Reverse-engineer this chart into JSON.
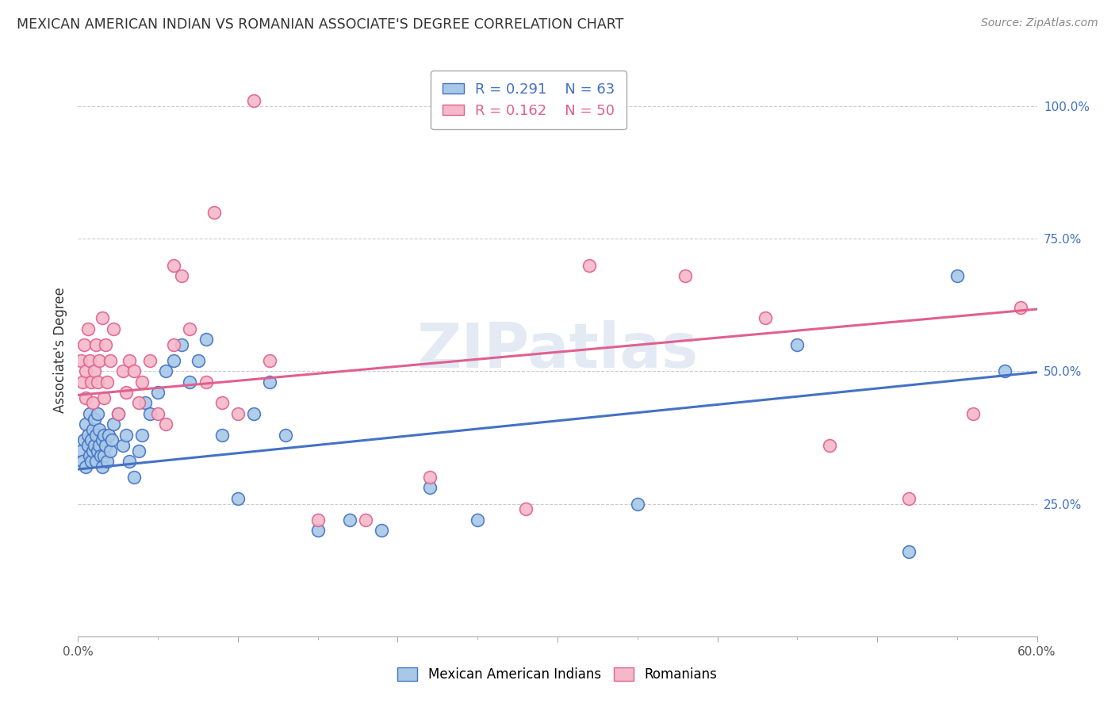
{
  "title": "MEXICAN AMERICAN INDIAN VS ROMANIAN ASSOCIATE'S DEGREE CORRELATION CHART",
  "source": "Source: ZipAtlas.com",
  "ylabel": "Associate's Degree",
  "ytick_labels": [
    "25.0%",
    "50.0%",
    "75.0%",
    "100.0%"
  ],
  "ytick_values": [
    0.25,
    0.5,
    0.75,
    1.0
  ],
  "xlim": [
    0.0,
    0.6
  ],
  "ylim": [
    0.0,
    1.08
  ],
  "legend_blue_r": "R = 0.291",
  "legend_blue_n": "N = 63",
  "legend_pink_r": "R = 0.162",
  "legend_pink_n": "N = 50",
  "legend_label_blue": "Mexican American Indians",
  "legend_label_pink": "Romanians",
  "blue_fill": "#a8c8e8",
  "pink_fill": "#f4b8c8",
  "blue_edge": "#4472c4",
  "pink_edge": "#e06090",
  "blue_line": "#4472c4",
  "pink_line": "#e06090",
  "watermark": "ZIPatlas",
  "blue_x": [
    0.002,
    0.003,
    0.004,
    0.005,
    0.005,
    0.006,
    0.006,
    0.007,
    0.007,
    0.008,
    0.008,
    0.009,
    0.009,
    0.01,
    0.01,
    0.011,
    0.011,
    0.012,
    0.012,
    0.013,
    0.013,
    0.014,
    0.015,
    0.015,
    0.016,
    0.016,
    0.017,
    0.018,
    0.019,
    0.02,
    0.021,
    0.022,
    0.025,
    0.028,
    0.03,
    0.032,
    0.035,
    0.038,
    0.04,
    0.042,
    0.045,
    0.05,
    0.055,
    0.06,
    0.065,
    0.07,
    0.075,
    0.08,
    0.09,
    0.1,
    0.11,
    0.12,
    0.13,
    0.15,
    0.17,
    0.19,
    0.22,
    0.25,
    0.35,
    0.45,
    0.52,
    0.55,
    0.58
  ],
  "blue_y": [
    0.35,
    0.33,
    0.37,
    0.4,
    0.32,
    0.36,
    0.38,
    0.34,
    0.42,
    0.37,
    0.33,
    0.35,
    0.39,
    0.36,
    0.41,
    0.33,
    0.38,
    0.35,
    0.42,
    0.36,
    0.39,
    0.34,
    0.37,
    0.32,
    0.38,
    0.34,
    0.36,
    0.33,
    0.38,
    0.35,
    0.37,
    0.4,
    0.42,
    0.36,
    0.38,
    0.33,
    0.3,
    0.35,
    0.38,
    0.44,
    0.42,
    0.46,
    0.5,
    0.52,
    0.55,
    0.48,
    0.52,
    0.56,
    0.38,
    0.26,
    0.42,
    0.48,
    0.38,
    0.2,
    0.22,
    0.2,
    0.28,
    0.22,
    0.25,
    0.55,
    0.16,
    0.68,
    0.5
  ],
  "pink_x": [
    0.002,
    0.003,
    0.004,
    0.005,
    0.005,
    0.006,
    0.007,
    0.008,
    0.009,
    0.01,
    0.011,
    0.012,
    0.013,
    0.015,
    0.016,
    0.017,
    0.018,
    0.02,
    0.022,
    0.025,
    0.028,
    0.03,
    0.032,
    0.035,
    0.038,
    0.04,
    0.045,
    0.05,
    0.055,
    0.06,
    0.065,
    0.07,
    0.08,
    0.09,
    0.1,
    0.12,
    0.15,
    0.18,
    0.22,
    0.28,
    0.32,
    0.38,
    0.43,
    0.47,
    0.52,
    0.56,
    0.59,
    0.06,
    0.085,
    0.11
  ],
  "pink_y": [
    0.52,
    0.48,
    0.55,
    0.5,
    0.45,
    0.58,
    0.52,
    0.48,
    0.44,
    0.5,
    0.55,
    0.48,
    0.52,
    0.6,
    0.45,
    0.55,
    0.48,
    0.52,
    0.58,
    0.42,
    0.5,
    0.46,
    0.52,
    0.5,
    0.44,
    0.48,
    0.52,
    0.42,
    0.4,
    0.55,
    0.68,
    0.58,
    0.48,
    0.44,
    0.42,
    0.52,
    0.22,
    0.22,
    0.3,
    0.24,
    0.7,
    0.68,
    0.6,
    0.36,
    0.26,
    0.42,
    0.62,
    0.7,
    0.8,
    1.01
  ],
  "blue_intercept": 0.315,
  "blue_slope": 0.305,
  "pink_intercept": 0.455,
  "pink_slope": 0.27
}
